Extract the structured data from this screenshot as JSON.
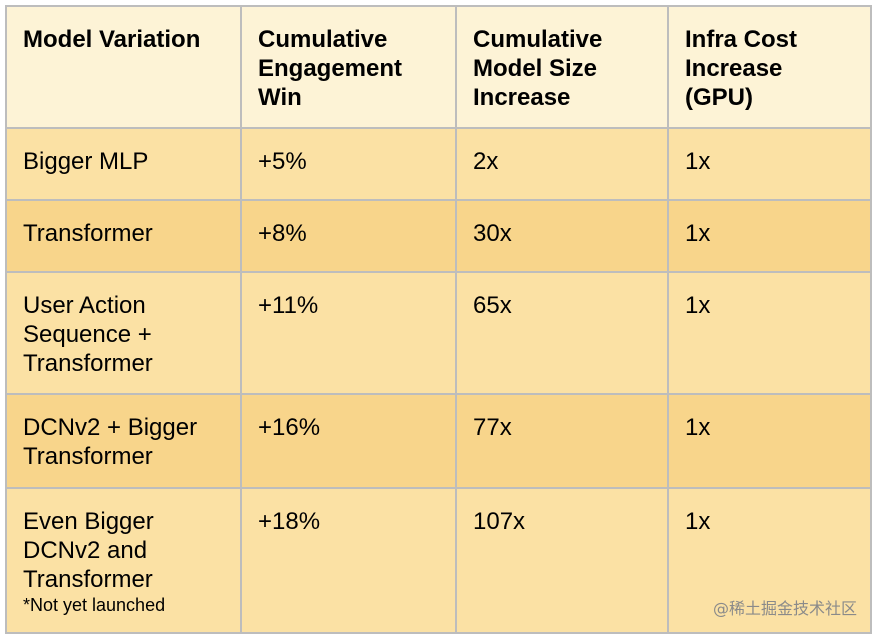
{
  "table": {
    "headers": [
      "Model Variation",
      "Cumulative\nEngagement\nWin",
      "Cumulative\nModel Size\nIncrease",
      "Infra Cost\nIncrease\n(GPU)"
    ],
    "rows": [
      {
        "model": "Bigger MLP",
        "note": "",
        "engagement": "+5%",
        "size": "2x",
        "cost": "1x"
      },
      {
        "model": "Transformer",
        "note": "",
        "engagement": "+8%",
        "size": "30x",
        "cost": "1x"
      },
      {
        "model": "User Action\nSequence +\nTransformer",
        "note": "",
        "engagement": "+11%",
        "size": "65x",
        "cost": "1x"
      },
      {
        "model": "DCNv2 + Bigger\nTransformer",
        "note": "",
        "engagement": "+16%",
        "size": "77x",
        "cost": "1x"
      },
      {
        "model": "Even Bigger\nDCNv2 and\nTransformer",
        "note": "*Not yet launched",
        "engagement": "+18%",
        "size": "107x",
        "cost": "1x"
      }
    ]
  },
  "watermark": "@稀土掘金技术社区"
}
